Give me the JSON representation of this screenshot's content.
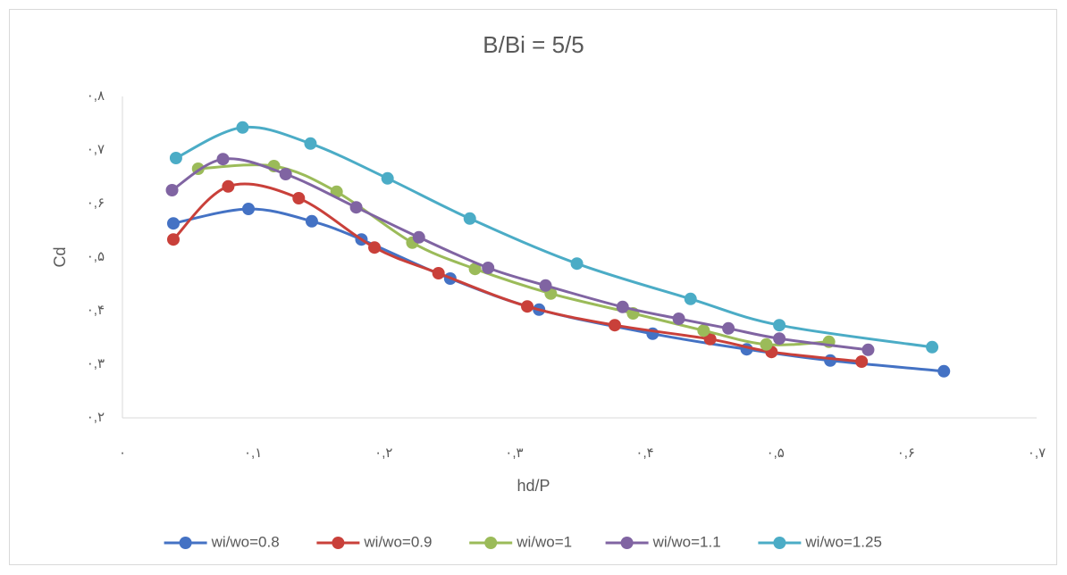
{
  "chart_data": {
    "type": "line",
    "smooth": true,
    "title": "B/Bi = 5/5",
    "x_label": "hd/P",
    "y_label": "Cd",
    "xlim": [
      0,
      0.7
    ],
    "ylim": [
      0.2,
      0.8
    ],
    "grid": false,
    "legend": "bottom",
    "xticks": [
      {
        "value": 0,
        "label": "۰"
      },
      {
        "value": 0.1,
        "label": "۰,۱"
      },
      {
        "value": 0.2,
        "label": "۰,۲"
      },
      {
        "value": 0.3,
        "label": "۰,۳"
      },
      {
        "value": 0.4,
        "label": "۰,۴"
      },
      {
        "value": 0.5,
        "label": "۰,۵"
      },
      {
        "value": 0.6,
        "label": "۰,۶"
      },
      {
        "value": 0.7,
        "label": "۰,۷"
      }
    ],
    "yticks": [
      {
        "value": 0.2,
        "label": "۰,۲"
      },
      {
        "value": 0.3,
        "label": "۰,۳"
      },
      {
        "value": 0.4,
        "label": "۰,۴"
      },
      {
        "value": 0.5,
        "label": "۰,۵"
      },
      {
        "value": 0.6,
        "label": "۰,۶"
      },
      {
        "value": 0.7,
        "label": "۰,۷"
      },
      {
        "value": 0.8,
        "label": "۰,۸"
      }
    ],
    "series": [
      {
        "name": "wi/wo=0.8",
        "color": "#4472c4",
        "x": [
          0.039,
          0.0965,
          0.145,
          0.183,
          0.251,
          0.319,
          0.406,
          0.478,
          0.542,
          0.629
        ],
        "values": [
          0.563,
          0.59,
          0.567,
          0.533,
          0.46,
          0.402,
          0.357,
          0.328,
          0.307,
          0.287
        ]
      },
      {
        "name": "wi/wo=0.9",
        "color": "#c9403a",
        "x": [
          0.039,
          0.081,
          0.135,
          0.193,
          0.242,
          0.31,
          0.377,
          0.45,
          0.497,
          0.566
        ],
        "values": [
          0.533,
          0.632,
          0.61,
          0.518,
          0.47,
          0.408,
          0.373,
          0.347,
          0.323,
          0.305
        ]
      },
      {
        "name": "wi/wo=1",
        "color": "#9bbb59",
        "x": [
          0.058,
          0.116,
          0.164,
          0.222,
          0.27,
          0.328,
          0.391,
          0.445,
          0.493,
          0.541
        ],
        "values": [
          0.665,
          0.67,
          0.622,
          0.527,
          0.478,
          0.432,
          0.395,
          0.363,
          0.337,
          0.342
        ]
      },
      {
        "name": "wi/wo=1.1",
        "color": "#8064a2",
        "x": [
          0.038,
          0.077,
          0.125,
          0.179,
          0.227,
          0.28,
          0.324,
          0.383,
          0.426,
          0.464,
          0.503,
          0.571
        ],
        "values": [
          0.625,
          0.683,
          0.655,
          0.593,
          0.537,
          0.48,
          0.447,
          0.407,
          0.385,
          0.367,
          0.348,
          0.327
        ]
      },
      {
        "name": "wi/wo=1.25",
        "color": "#4bacc6",
        "x": [
          0.041,
          0.092,
          0.144,
          0.203,
          0.266,
          0.348,
          0.435,
          0.503,
          0.62
        ],
        "values": [
          0.685,
          0.742,
          0.712,
          0.647,
          0.572,
          0.488,
          0.422,
          0.373,
          0.332
        ]
      }
    ]
  }
}
